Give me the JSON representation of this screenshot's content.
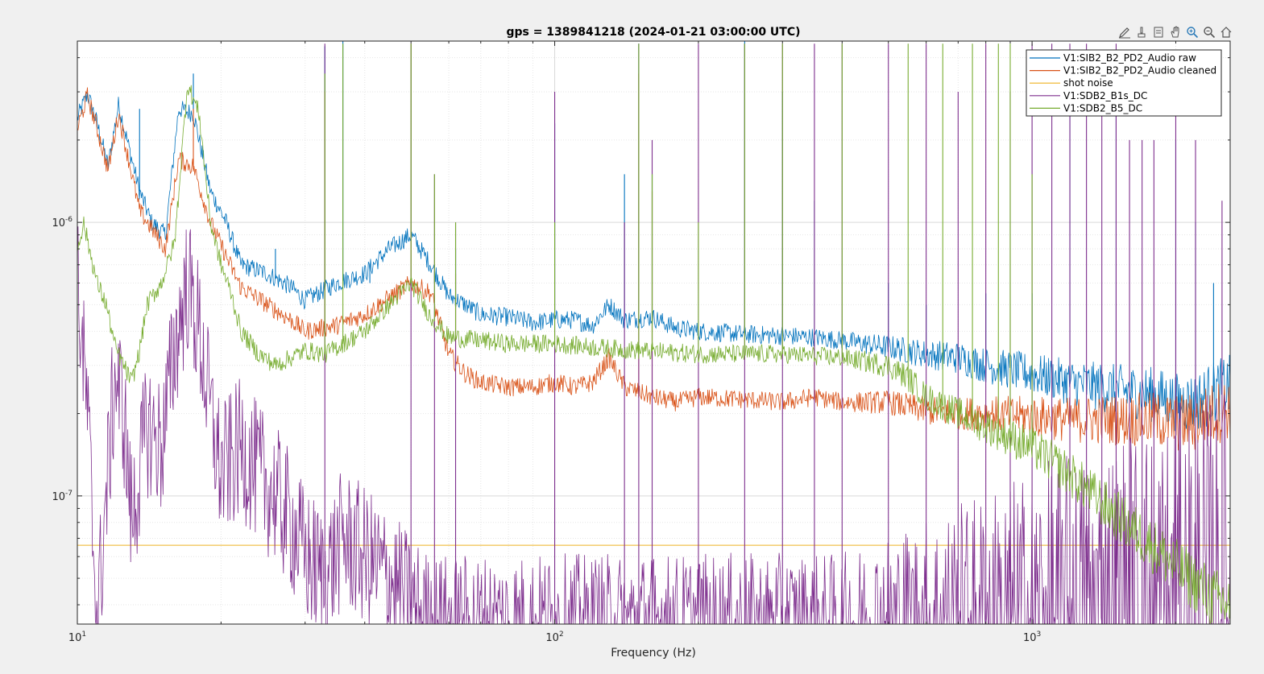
{
  "chart_data": {
    "type": "line",
    "title": "gps = 1389841218 (2024-01-21 03:00:00 UTC)",
    "xlabel": "Frequency (Hz)",
    "ylabel": "",
    "xscale": "log",
    "yscale": "log",
    "xlim": [
      10,
      2600
    ],
    "ylim": [
      3.4e-08,
      4.6e-06
    ],
    "xticks": [
      {
        "label": "10",
        "sup": "1",
        "value": 10
      },
      {
        "label": "10",
        "sup": "2",
        "value": 100
      },
      {
        "label": "10",
        "sup": "3",
        "value": 1000
      }
    ],
    "yticks": [
      {
        "label": "10",
        "sup": "-7",
        "value": 1e-07
      },
      {
        "label": "10",
        "sup": "-6",
        "value": 1e-06
      }
    ],
    "grid": true,
    "legend_position": "top-right",
    "series": [
      {
        "name": "V1:SIB2_B2_PD2_Audio raw",
        "color": "#0072bd",
        "x": [
          10,
          10.5,
          11,
          11.6,
          12.2,
          12.9,
          13.5,
          14.3,
          15.3,
          16.3,
          17.5,
          19,
          20.5,
          22,
          25,
          28,
          30,
          35,
          40,
          45,
          50,
          55,
          60,
          65,
          70,
          80,
          90,
          100,
          110,
          120,
          130,
          140,
          160,
          180,
          200,
          250,
          300,
          350,
          400,
          500,
          600,
          700,
          800,
          1000,
          1200,
          1500,
          1800,
          2000,
          2100,
          2200,
          2300,
          2400,
          2600
        ],
        "y": [
          2.4e-06,
          2.95e-06,
          2.3e-06,
          1.6e-06,
          2.7e-06,
          1.8e-06,
          1.3e-06,
          1e-06,
          9e-07,
          2.6e-06,
          2.5e-06,
          1.3e-06,
          1e-06,
          7e-07,
          6.5e-07,
          5.8e-07,
          5.2e-07,
          6e-07,
          6.5e-07,
          8e-07,
          9e-07,
          7e-07,
          5.4e-07,
          5e-07,
          4.6e-07,
          4.5e-07,
          4.3e-07,
          4.4e-07,
          4.4e-07,
          4.2e-07,
          5e-07,
          4.4e-07,
          4.5e-07,
          4.1e-07,
          4e-07,
          3.9e-07,
          3.85e-07,
          3.8e-07,
          3.7e-07,
          3.5e-07,
          3.3e-07,
          3.2e-07,
          3e-07,
          2.8e-07,
          2.6e-07,
          2.45e-07,
          2.35e-07,
          2.2e-07,
          2.2e-07,
          2.2e-07,
          2.3e-07,
          2.4e-07,
          2.5e-07
        ],
        "peaks": [
          [
            13.5,
            2.6e-06
          ],
          [
            17.5,
            3.5e-06
          ],
          [
            26,
            8e-07
          ],
          [
            33,
            4.4e-06
          ],
          [
            36,
            5.4e-06
          ],
          [
            41,
            6e-07
          ],
          [
            50,
            4.5e-06
          ],
          [
            56,
            6e-07
          ],
          [
            62,
            8e-07
          ],
          [
            100,
            2.3e-06
          ],
          [
            140,
            1.5e-06
          ],
          [
            150,
            4.5e-06
          ],
          [
            160,
            1.5e-06
          ],
          [
            250,
            5e-06
          ],
          [
            300,
            3e-06
          ],
          [
            350,
            1.2e-06
          ],
          [
            500,
            6e-07
          ],
          [
            600,
            5e-07
          ],
          [
            800,
            5.5e-07
          ],
          [
            1000,
            5.5e-07
          ],
          [
            1200,
            3.5e-06
          ],
          [
            1500,
            2.5e-06
          ],
          [
            2000,
            2e-06
          ],
          [
            2200,
            1e-06
          ],
          [
            2400,
            6e-07
          ]
        ]
      },
      {
        "name": "V1:SIB2_B2_PD2_Audio cleaned",
        "color": "#d95319",
        "x": [
          10,
          10.5,
          11,
          11.6,
          12.2,
          12.9,
          13.5,
          14.3,
          15.3,
          16.3,
          17.5,
          19,
          20.5,
          22,
          25,
          28,
          30,
          35,
          40,
          45,
          50,
          55,
          60,
          65,
          70,
          80,
          90,
          100,
          110,
          120,
          130,
          140,
          160,
          180,
          200,
          250,
          300,
          350,
          400,
          500,
          600,
          700,
          800,
          1000,
          1200,
          1500,
          1800,
          2000,
          2100,
          2200,
          2300,
          2400,
          2600
        ],
        "y": [
          2.2e-06,
          2.9e-06,
          2.2e-06,
          1.55e-06,
          2.5e-06,
          1.6e-06,
          1.1e-06,
          9.5e-07,
          8e-07,
          1.7e-06,
          1.6e-06,
          1e-06,
          7.5e-07,
          5.8e-07,
          5e-07,
          4.4e-07,
          4e-07,
          4.2e-07,
          4.6e-07,
          5.3e-07,
          6e-07,
          5.5e-07,
          3.3e-07,
          2.8e-07,
          2.6e-07,
          2.5e-07,
          2.5e-07,
          2.6e-07,
          2.5e-07,
          2.6e-07,
          3.2e-07,
          2.5e-07,
          2.3e-07,
          2.2e-07,
          2.3e-07,
          2.25e-07,
          2.2e-07,
          2.3e-07,
          2.2e-07,
          2.2e-07,
          2.05e-07,
          2e-07,
          2e-07,
          1.95e-07,
          1.9e-07,
          1.9e-07,
          1.9e-07,
          1.85e-07,
          1.85e-07,
          1.85e-07,
          1.95e-07,
          2e-07,
          2.1e-07
        ],
        "peaks": [
          [
            17.5,
            2.6e-06
          ],
          [
            33,
            3e-06
          ],
          [
            50,
            4.5e-06
          ],
          [
            62,
            6.5e-07
          ],
          [
            150,
            3.5e-06
          ],
          [
            160,
            1.3e-06
          ],
          [
            350,
            4e-07
          ]
        ]
      },
      {
        "name": "shot noise",
        "color": "#edb120",
        "x": [
          10,
          2600
        ],
        "y": [
          6.6e-08,
          6.6e-08
        ],
        "peaks": []
      },
      {
        "name": "V1:SDB2_B1s_DC",
        "color": "#7e2f8e",
        "x": [
          10,
          10.5,
          11,
          11.5,
          12,
          12.5,
          13,
          14,
          15,
          16,
          17,
          18,
          19,
          20,
          22,
          24,
          26,
          28,
          30,
          33,
          36,
          40,
          45,
          50,
          55,
          60,
          70,
          80,
          100,
          130,
          160,
          200,
          300,
          400,
          600,
          1000,
          2000,
          2600
        ],
        "y": [
          6e-07,
          2e-07,
          3.4e-08,
          1e-07,
          2.8e-07,
          2e-07,
          8e-08,
          1.8e-07,
          1.5e-07,
          3.5e-07,
          6e-07,
          4e-07,
          2e-07,
          1.2e-07,
          1.5e-07,
          1.2e-07,
          1e-07,
          8e-08,
          6e-08,
          5e-08,
          7e-08,
          6e-08,
          5e-08,
          4e-08,
          3.4e-08,
          3.4e-08,
          3.4e-08,
          3.4e-08,
          3.4e-08,
          3.4e-08,
          3.4e-08,
          3.4e-08,
          3.4e-08,
          3.4e-08,
          3.4e-08,
          3.4e-08,
          3.4e-08,
          3.4e-08
        ],
        "peaks": [
          [
            33,
            4.5e-06
          ],
          [
            50,
            4.5e-06
          ],
          [
            56,
            1.5e-06
          ],
          [
            62,
            1e-06
          ],
          [
            100,
            3e-06
          ],
          [
            140,
            1e-06
          ],
          [
            150,
            4.5e-06
          ],
          [
            160,
            2e-06
          ],
          [
            200,
            4.5e-06
          ],
          [
            250,
            4.5e-06
          ],
          [
            300,
            4.5e-06
          ],
          [
            350,
            4.5e-06
          ],
          [
            400,
            4.5e-06
          ],
          [
            500,
            4.5e-06
          ],
          [
            600,
            4.5e-06
          ],
          [
            700,
            3e-06
          ],
          [
            800,
            4.5e-06
          ],
          [
            900,
            3e-06
          ],
          [
            1000,
            4.5e-06
          ],
          [
            1100,
            4.5e-06
          ],
          [
            1200,
            4.5e-06
          ],
          [
            1300,
            4.5e-06
          ],
          [
            1400,
            3e-06
          ],
          [
            1500,
            4.5e-06
          ],
          [
            1600,
            2e-06
          ],
          [
            1700,
            2e-06
          ],
          [
            1800,
            2e-06
          ],
          [
            2000,
            3e-06
          ],
          [
            2200,
            2e-06
          ],
          [
            2500,
            1.2e-06
          ]
        ]
      },
      {
        "name": "V1:SDB2_B5_DC",
        "color": "#77ac30",
        "x": [
          10,
          10.3,
          10.6,
          11,
          11.5,
          12,
          12.5,
          13,
          13.5,
          14,
          15,
          16,
          17,
          18,
          19,
          20,
          21,
          22,
          24,
          26,
          28,
          30,
          33,
          36,
          40,
          45,
          50,
          55,
          60,
          70,
          80,
          100,
          120,
          150,
          200,
          250,
          300,
          400,
          500,
          550,
          600,
          700,
          800,
          1000,
          1200,
          1500,
          1800,
          2000,
          2200,
          2400,
          2600
        ],
        "y": [
          8e-07,
          1e-06,
          8e-07,
          6e-07,
          5e-07,
          3.5e-07,
          3e-07,
          2.6e-07,
          3.4e-07,
          5e-07,
          6e-07,
          8.5e-07,
          3.2e-06,
          2.5e-06,
          1e-06,
          7e-07,
          5.5e-07,
          4e-07,
          3.3e-07,
          3e-07,
          3.2e-07,
          3.4e-07,
          3.3e-07,
          3.6e-07,
          4e-07,
          5e-07,
          6e-07,
          4.5e-07,
          3.8e-07,
          3.7e-07,
          3.6e-07,
          3.6e-07,
          3.5e-07,
          3.4e-07,
          3.3e-07,
          3.3e-07,
          3.3e-07,
          3.2e-07,
          3e-07,
          2.7e-07,
          2.3e-07,
          2e-07,
          1.8e-07,
          1.5e-07,
          1.2e-07,
          8.5e-08,
          6.5e-08,
          5.5e-08,
          4.8e-08,
          4.2e-08,
          4e-08
        ],
        "peaks": [
          [
            33,
            3.5e-06
          ],
          [
            36,
            4.5e-06
          ],
          [
            50,
            4.5e-06
          ],
          [
            56,
            1.5e-06
          ],
          [
            62,
            1e-06
          ],
          [
            100,
            1e-06
          ],
          [
            150,
            4.5e-06
          ],
          [
            160,
            1.5e-06
          ],
          [
            200,
            1e-06
          ],
          [
            250,
            4.5e-06
          ],
          [
            300,
            4.5e-06
          ],
          [
            400,
            4.5e-06
          ],
          [
            550,
            4.5e-06
          ],
          [
            650,
            4.5e-06
          ],
          [
            750,
            4.5e-06
          ],
          [
            850,
            4.5e-06
          ],
          [
            900,
            4.5e-06
          ],
          [
            1000,
            1.5e-06
          ]
        ]
      }
    ]
  },
  "toolbar": {
    "buttons": [
      {
        "icon": "edit-plot-icon",
        "label": "Edit plot"
      },
      {
        "icon": "print-icon",
        "label": "Print"
      },
      {
        "icon": "data-cursor-icon",
        "label": "Data cursor"
      },
      {
        "icon": "pan-icon",
        "label": "Pan"
      },
      {
        "icon": "zoom-in-icon",
        "label": "Zoom in"
      },
      {
        "icon": "zoom-out-icon",
        "label": "Zoom out"
      },
      {
        "icon": "home-icon",
        "label": "Restore view"
      }
    ]
  }
}
